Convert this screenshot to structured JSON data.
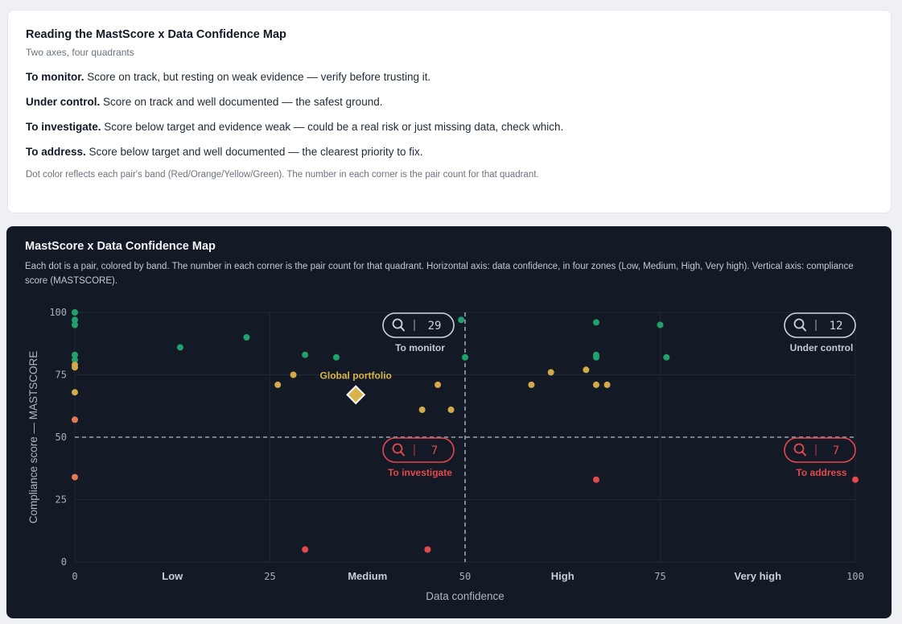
{
  "guide": {
    "title": "Reading the MastScore x Data Confidence Map",
    "subtitle": "Two axes, four quadrants",
    "items": [
      {
        "term": "To monitor.",
        "text": " Score on track, but resting on weak evidence — verify before trusting it."
      },
      {
        "term": "Under control.",
        "text": " Score on track and well documented — the safest ground."
      },
      {
        "term": "To investigate.",
        "text": " Score below target and evidence weak — could be a real risk or just missing data, check which."
      },
      {
        "term": "To address.",
        "text": " Score below target and well documented — the clearest priority to fix."
      }
    ],
    "note": "Dot color reflects each pair's band (Red/Orange/Yellow/Green). The number in each corner is the pair count for that quadrant."
  },
  "map": {
    "title": "MastScore x Data Confidence Map",
    "description": "Each dot is a pair, colored by band. The number in each corner is the pair count for that quadrant. Horizontal axis: data confidence, in four zones (Low, Medium, High, Very high). Vertical axis: compliance score (MASTSCORE)."
  },
  "colors": {
    "green": "#22a06b",
    "yellow": "#d4a94c",
    "orange": "#e07b53",
    "red": "#e5484d",
    "portfolio": "#d9b44a",
    "badge_grey": "#cbd5e1"
  },
  "chart_data": {
    "type": "scatter",
    "xlabel": "Data confidence",
    "ylabel": "Compliance score — MASTSCORE",
    "xlim": [
      0,
      100
    ],
    "ylim": [
      0,
      100
    ],
    "x_ticks": [
      "0",
      "25",
      "50",
      "75",
      "100"
    ],
    "y_ticks": [
      "0",
      "25",
      "50",
      "75",
      "100"
    ],
    "zones": [
      "Low",
      "Medium",
      "High",
      "Very high"
    ],
    "threshold_x": 50,
    "threshold_y": 50,
    "grid": true,
    "portfolio": {
      "label": "Global portfolio",
      "x": 36,
      "y": 67
    },
    "quadrants": [
      {
        "name": "monitor",
        "label": "To monitor",
        "count": "29",
        "color": "grey"
      },
      {
        "name": "control",
        "label": "Under control",
        "count": "12",
        "color": "grey"
      },
      {
        "name": "investigate",
        "label": "To investigate",
        "count": "7",
        "color": "red"
      },
      {
        "name": "address",
        "label": "To address",
        "count": "7",
        "color": "red"
      }
    ],
    "points": [
      {
        "x": 0,
        "y": 100,
        "band": "Green"
      },
      {
        "x": 0,
        "y": 97,
        "band": "Green"
      },
      {
        "x": 0,
        "y": 95,
        "band": "Green"
      },
      {
        "x": 0,
        "y": 83,
        "band": "Green"
      },
      {
        "x": 0,
        "y": 81,
        "band": "Green"
      },
      {
        "x": 0,
        "y": 79,
        "band": "Yellow"
      },
      {
        "x": 0,
        "y": 78,
        "band": "Yellow"
      },
      {
        "x": 0,
        "y": 68,
        "band": "Yellow"
      },
      {
        "x": 0,
        "y": 57,
        "band": "Orange"
      },
      {
        "x": 0,
        "y": 34,
        "band": "Orange"
      },
      {
        "x": 13.5,
        "y": 86,
        "band": "Green"
      },
      {
        "x": 22,
        "y": 90,
        "band": "Green"
      },
      {
        "x": 26,
        "y": 71,
        "band": "Yellow"
      },
      {
        "x": 28,
        "y": 75,
        "band": "Yellow"
      },
      {
        "x": 29.5,
        "y": 83,
        "band": "Green"
      },
      {
        "x": 29.5,
        "y": 5,
        "band": "Red"
      },
      {
        "x": 33.5,
        "y": 82,
        "band": "Green"
      },
      {
        "x": 44.5,
        "y": 61,
        "band": "Yellow"
      },
      {
        "x": 45,
        "y": 97,
        "band": "Green"
      },
      {
        "x": 46.5,
        "y": 71,
        "band": "Yellow"
      },
      {
        "x": 45.2,
        "y": 5,
        "band": "Red"
      },
      {
        "x": 48.2,
        "y": 61,
        "band": "Yellow"
      },
      {
        "x": 49.5,
        "y": 97,
        "band": "Green"
      },
      {
        "x": 50,
        "y": 82,
        "band": "Green"
      },
      {
        "x": 58.5,
        "y": 71,
        "band": "Yellow"
      },
      {
        "x": 61,
        "y": 76,
        "band": "Yellow"
      },
      {
        "x": 65.5,
        "y": 77,
        "band": "Yellow"
      },
      {
        "x": 66.8,
        "y": 96,
        "band": "Green"
      },
      {
        "x": 66.8,
        "y": 83,
        "band": "Green"
      },
      {
        "x": 66.8,
        "y": 82,
        "band": "Green"
      },
      {
        "x": 66.8,
        "y": 71,
        "band": "Yellow"
      },
      {
        "x": 68.2,
        "y": 71,
        "band": "Yellow"
      },
      {
        "x": 66.8,
        "y": 33,
        "band": "Red"
      },
      {
        "x": 75,
        "y": 95,
        "band": "Green"
      },
      {
        "x": 75.8,
        "y": 82,
        "band": "Green"
      },
      {
        "x": 100,
        "y": 33,
        "band": "Red"
      }
    ]
  }
}
